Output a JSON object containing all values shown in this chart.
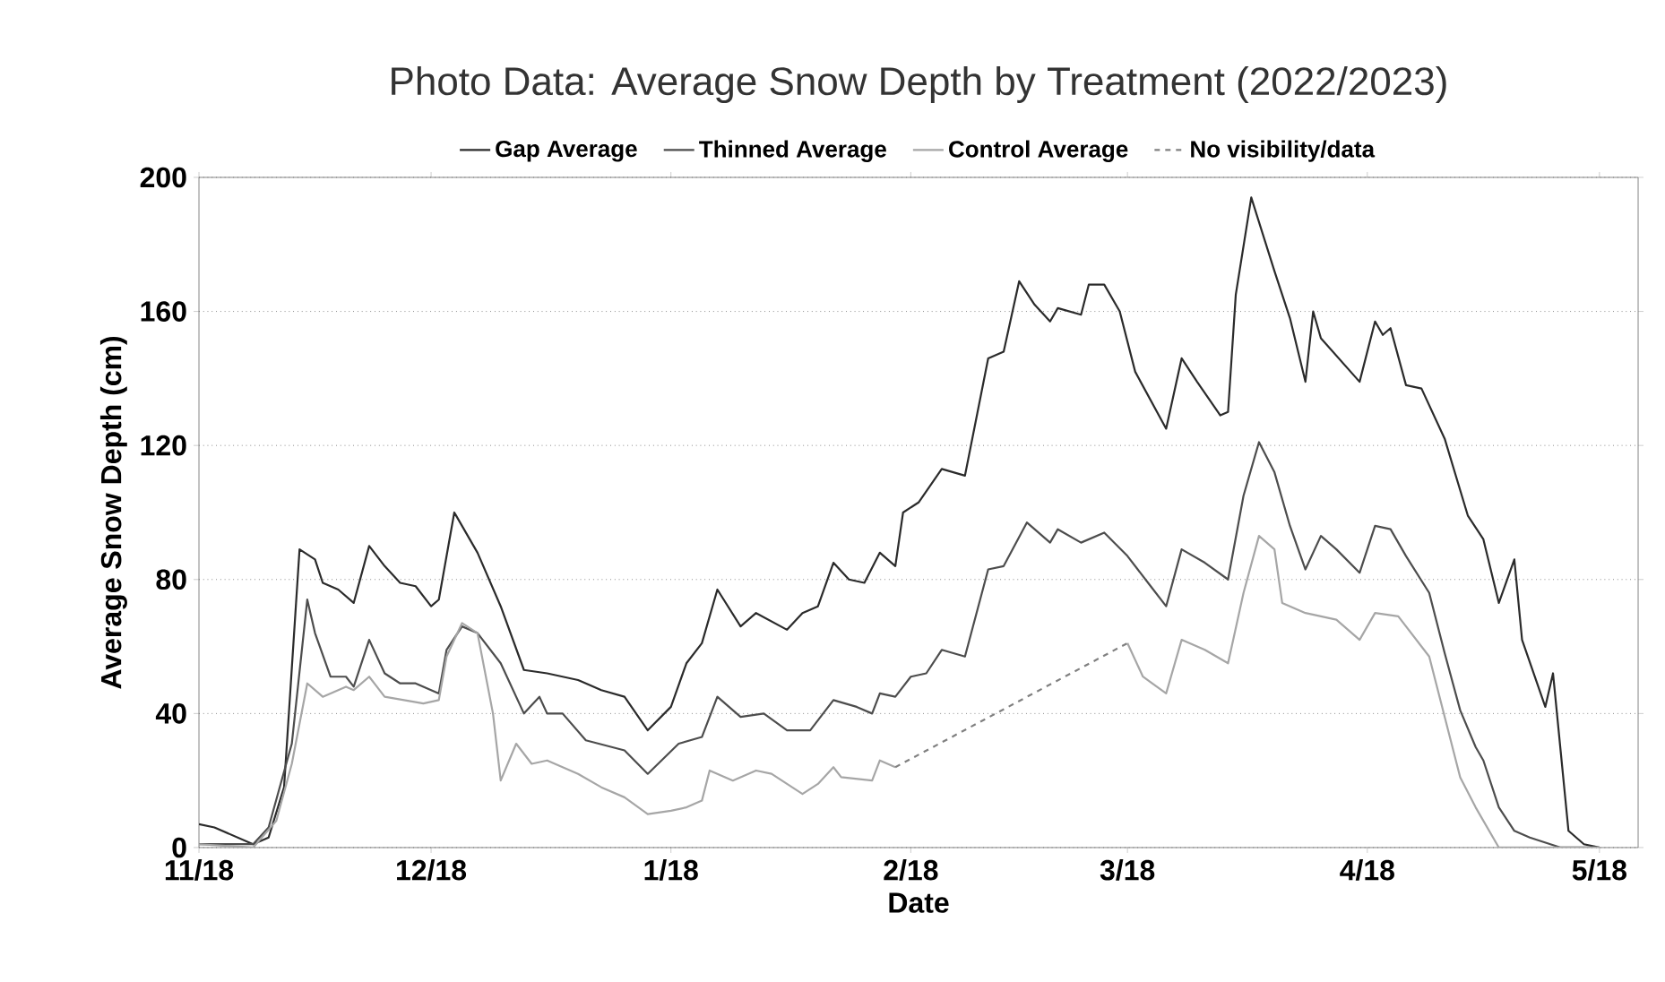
{
  "chart_data": {
    "type": "line",
    "title": "Photo Data: Average Snow Depth by Treatment (2022/2023)",
    "xlabel": "Date",
    "ylabel": "Average Snow Depth (cm)",
    "xlim": [
      "2022-11-18",
      "2023-05-23"
    ],
    "xticks": [
      {
        "value": "2022-11-18",
        "label": "11/18"
      },
      {
        "value": "2022-12-18",
        "label": "12/18"
      },
      {
        "value": "2023-01-18",
        "label": "1/18"
      },
      {
        "value": "2023-02-18",
        "label": "2/18"
      },
      {
        "value": "2023-03-18",
        "label": "3/18"
      },
      {
        "value": "2023-04-18",
        "label": "4/18"
      },
      {
        "value": "2023-05-18",
        "label": "5/18"
      }
    ],
    "ylim": [
      0,
      200
    ],
    "yticks": [
      0,
      40,
      80,
      120,
      160,
      200
    ],
    "grid": "y",
    "legend": "top",
    "series": [
      {
        "name": "Gap Average",
        "color": "#2b2b2b",
        "x": [
          "2022-11-18",
          "2022-11-20",
          "2022-11-25",
          "2022-11-27",
          "2022-11-29",
          "2022-12-01",
          "2022-12-03",
          "2022-12-04",
          "2022-12-06",
          "2022-12-08",
          "2022-12-10",
          "2022-12-12",
          "2022-12-14",
          "2022-12-16",
          "2022-12-18",
          "2022-12-19",
          "2022-12-21",
          "2022-12-24",
          "2022-12-27",
          "2022-12-30",
          "2023-01-02",
          "2023-01-06",
          "2023-01-09",
          "2023-01-12",
          "2023-01-15",
          "2023-01-18",
          "2023-01-20",
          "2023-01-22",
          "2023-01-24",
          "2023-01-27",
          "2023-01-29",
          "2023-02-02",
          "2023-02-04",
          "2023-02-06",
          "2023-02-08",
          "2023-02-10",
          "2023-02-12",
          "2023-02-14",
          "2023-02-16",
          "2023-02-17",
          "2023-02-19",
          "2023-02-22",
          "2023-02-25",
          "2023-02-28",
          "2023-03-02",
          "2023-03-04",
          "2023-03-06",
          "2023-03-08",
          "2023-03-09",
          "2023-03-12",
          "2023-03-13",
          "2023-03-15",
          "2023-03-17",
          "2023-03-19",
          "2023-03-23",
          "2023-03-25",
          "2023-03-27",
          "2023-03-30",
          "2023-03-31",
          "2023-04-01",
          "2023-04-03",
          "2023-04-06",
          "2023-04-08",
          "2023-04-10",
          "2023-04-11",
          "2023-04-12",
          "2023-04-17",
          "2023-04-19",
          "2023-04-20",
          "2023-04-21",
          "2023-04-23",
          "2023-04-25",
          "2023-04-28",
          "2023-05-01",
          "2023-05-03",
          "2023-05-05",
          "2023-05-07",
          "2023-05-08",
          "2023-05-11",
          "2023-05-12",
          "2023-05-14",
          "2023-05-16",
          "2023-05-18"
        ],
        "values": [
          7,
          6,
          1,
          3,
          18,
          89,
          86,
          79,
          77,
          73,
          90,
          84,
          79,
          78,
          72,
          74,
          100,
          88,
          72,
          53,
          52,
          50,
          47,
          45,
          35,
          42,
          55,
          61,
          77,
          66,
          70,
          65,
          70,
          72,
          85,
          80,
          79,
          88,
          84,
          100,
          103,
          113,
          111,
          146,
          148,
          169,
          162,
          157,
          161,
          159,
          168,
          168,
          160,
          142,
          125,
          146,
          139,
          129,
          130,
          165,
          194,
          172,
          158,
          139,
          160,
          152,
          139,
          157,
          153,
          155,
          138,
          137,
          122,
          99,
          92,
          73,
          86,
          62,
          42,
          52,
          5,
          1,
          0
        ]
      },
      {
        "name": "Thinned Average",
        "color": "#4d4d4d",
        "x": [
          "2022-11-18",
          "2022-11-25",
          "2022-11-27",
          "2022-11-30",
          "2022-12-02",
          "2022-12-03",
          "2022-12-05",
          "2022-12-07",
          "2022-12-08",
          "2022-12-10",
          "2022-12-12",
          "2022-12-14",
          "2022-12-16",
          "2022-12-19",
          "2022-12-20",
          "2022-12-22",
          "2022-12-24",
          "2022-12-27",
          "2022-12-30",
          "2023-01-01",
          "2023-01-02",
          "2023-01-04",
          "2023-01-07",
          "2023-01-12",
          "2023-01-15",
          "2023-01-19",
          "2023-01-22",
          "2023-01-24",
          "2023-01-27",
          "2023-01-30",
          "2023-02-02",
          "2023-02-05",
          "2023-02-08",
          "2023-02-11",
          "2023-02-13",
          "2023-02-14",
          "2023-02-16",
          "2023-02-18",
          "2023-02-20",
          "2023-02-22",
          "2023-02-25",
          "2023-02-28",
          "2023-03-02",
          "2023-03-05",
          "2023-03-08",
          "2023-03-09",
          "2023-03-12",
          "2023-03-15",
          "2023-03-18",
          "2023-03-21",
          "2023-03-23",
          "2023-03-25",
          "2023-03-28",
          "2023-03-31",
          "2023-04-02",
          "2023-04-04",
          "2023-04-06",
          "2023-04-08",
          "2023-04-10",
          "2023-04-12",
          "2023-04-14",
          "2023-04-17",
          "2023-04-19",
          "2023-04-21",
          "2023-04-23",
          "2023-04-26",
          "2023-04-28",
          "2023-04-30",
          "2023-05-02",
          "2023-05-03",
          "2023-05-05",
          "2023-05-07",
          "2023-05-09",
          "2023-05-13",
          "2023-05-18"
        ],
        "values": [
          1,
          1,
          6,
          31,
          74,
          64,
          51,
          51,
          48,
          62,
          52,
          49,
          49,
          46,
          59,
          66,
          64,
          55,
          40,
          45,
          40,
          40,
          32,
          29,
          22,
          31,
          33,
          45,
          39,
          40,
          35,
          35,
          44,
          42,
          40,
          46,
          45,
          51,
          52,
          59,
          57,
          83,
          84,
          97,
          91,
          95,
          91,
          94,
          87,
          78,
          72,
          89,
          85,
          80,
          105,
          121,
          112,
          96,
          83,
          93,
          89,
          82,
          96,
          95,
          87,
          76,
          58,
          41,
          30,
          26,
          12,
          5,
          3,
          0,
          0
        ]
      },
      {
        "name": "Control Average",
        "color": "#a6a6a6",
        "x": [
          "2022-11-18",
          "2022-11-25",
          "2022-11-28",
          "2022-11-30",
          "2022-12-02",
          "2022-12-04",
          "2022-12-07",
          "2022-12-08",
          "2022-12-10",
          "2022-12-12",
          "2022-12-17",
          "2022-12-19",
          "2022-12-20",
          "2022-12-22",
          "2022-12-24",
          "2022-12-26",
          "2022-12-27",
          "2022-12-29",
          "2022-12-31",
          "2023-01-02",
          "2023-01-06",
          "2023-01-09",
          "2023-01-12",
          "2023-01-15",
          "2023-01-18",
          "2023-01-20",
          "2023-01-22",
          "2023-01-23",
          "2023-01-26",
          "2023-01-29",
          "2023-01-31",
          "2023-02-04",
          "2023-02-06",
          "2023-02-08",
          "2023-02-09",
          "2023-02-13",
          "2023-02-14",
          "2023-02-16",
          "2023-03-03",
          "2023-03-18",
          "2023-03-20",
          "2023-03-23",
          "2023-03-25",
          "2023-03-28",
          "2023-03-31",
          "2023-04-02",
          "2023-04-04",
          "2023-04-06",
          "2023-04-07",
          "2023-04-10",
          "2023-04-14",
          "2023-04-17",
          "2023-04-19",
          "2023-04-22",
          "2023-04-26",
          "2023-04-28",
          "2023-04-30",
          "2023-05-02",
          "2023-05-05",
          "2023-05-18"
        ],
        "values": [
          1,
          0,
          8,
          25,
          49,
          45,
          48,
          47,
          51,
          45,
          43,
          44,
          57,
          67,
          64,
          40,
          20,
          31,
          25,
          26,
          22,
          18,
          15,
          10,
          11,
          12,
          14,
          23,
          20,
          23,
          22,
          16,
          19,
          24,
          21,
          20,
          26,
          24,
          null,
          61,
          51,
          46,
          62,
          59,
          55,
          76,
          93,
          89,
          73,
          70,
          68,
          62,
          70,
          69,
          57,
          39,
          21,
          12,
          0,
          0
        ]
      },
      {
        "name": "No visibility/data",
        "color": "#808080",
        "line_style": "dashed",
        "x": [
          "2023-02-16",
          "2023-03-18"
        ],
        "values": [
          24,
          61
        ]
      }
    ]
  }
}
